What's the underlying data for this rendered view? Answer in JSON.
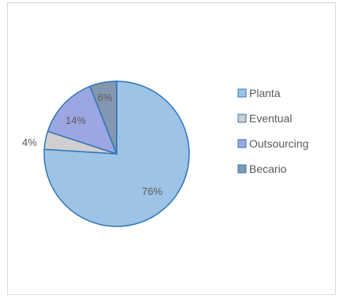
{
  "chart_data": {
    "type": "pie",
    "title": "",
    "legend_position": "right",
    "slices": [
      {
        "label": "Planta",
        "value": 76,
        "value_label": "76%",
        "color": "#9dc3e6",
        "stroke": "#2e75b6"
      },
      {
        "label": "Eventual",
        "value": 4,
        "value_label": "4%",
        "color": "#d0cece",
        "stroke": "#2e75b6"
      },
      {
        "label": "Outsourcing",
        "value": 14,
        "value_label": "14%",
        "color": "#9ba6e2",
        "stroke": "#2e75b6"
      },
      {
        "label": "Becario",
        "value": 6,
        "value_label": "6%",
        "color": "#8497b0",
        "stroke": "#2e75b6"
      }
    ]
  }
}
